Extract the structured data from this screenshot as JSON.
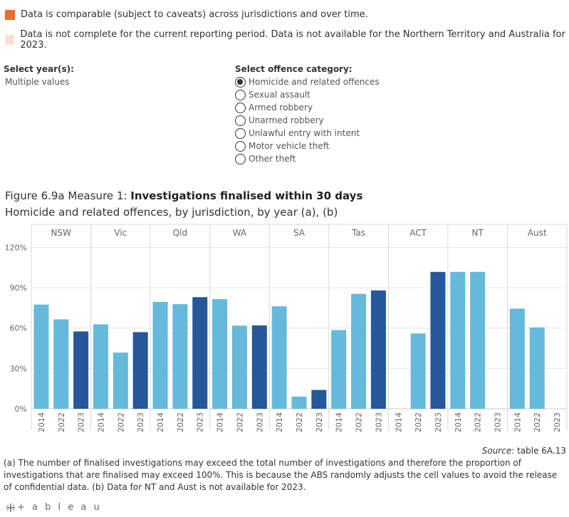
{
  "legend": [
    {
      "color": "#F26B2E",
      "label": "Data is comparable (subject to caveats) across jurisdictions and over time."
    },
    {
      "color": "#FCE0D4",
      "label": "Data is not complete for the current reporting period. Data is not available for the Northern Territory and Australia for 2023."
    }
  ],
  "filters": {
    "year": {
      "title": "Select year(s):",
      "value": "Multiple values"
    },
    "offence": {
      "title": "Select offence category:",
      "options": [
        {
          "label": "Homicide and related offences",
          "selected": true
        },
        {
          "label": "Sexual assault",
          "selected": false
        },
        {
          "label": "Armed robbery",
          "selected": false
        },
        {
          "label": "Unarmed robbery",
          "selected": false
        },
        {
          "label": "Unlawful entry with intent",
          "selected": false
        },
        {
          "label": "Motor vehicle theft",
          "selected": false
        },
        {
          "label": "Other theft",
          "selected": false
        }
      ]
    }
  },
  "figure": {
    "prefix": "Figure 6.9a Measure 1: ",
    "title_bold": "Investigations finalised within 30 days",
    "subtitle": "Homicide and related offences, by jurisdiction, by year (a), (b)"
  },
  "chart_data": {
    "type": "bar",
    "panels": [
      "NSW",
      "Vic",
      "Qld",
      "WA",
      "SA",
      "Tas",
      "ACT",
      "NT",
      "Aust"
    ],
    "years": [
      "2014",
      "2022",
      "2023"
    ],
    "colors": {
      "2014": "#65BADB",
      "2022": "#65BADB",
      "2023": "#26579B"
    },
    "values": {
      "NSW": [
        77.5,
        66.5,
        57.5
      ],
      "Vic": [
        62.8,
        41.8,
        57.0
      ],
      "Qld": [
        79.5,
        77.8,
        83.0
      ],
      "WA": [
        81.5,
        61.8,
        62.0
      ],
      "SA": [
        76.2,
        9.0,
        14.0
      ],
      "Tas": [
        58.5,
        85.5,
        88.0
      ],
      "ACT": [
        null,
        56.0,
        101.8
      ],
      "NT": [
        101.8,
        101.8,
        null
      ],
      "Aust": [
        74.5,
        60.5,
        null
      ]
    },
    "yticks": [
      0,
      30,
      60,
      90,
      120
    ],
    "ytick_labels": [
      "0%",
      "30%",
      "60%",
      "90%",
      "120%"
    ],
    "ylim": [
      0,
      125
    ],
    "grid": true
  },
  "source": {
    "label": "Source",
    "text": ": table 6A.13"
  },
  "notes": "(a) The number of finalised investigations may exceed the total number of investigations and therefore the proportion of investigations that are finalised may exceed 100%. This is because the ABS randomly adjusts the cell values to avoid the release of confidential data. (b) Data for NT and Aust is not available for 2023.",
  "branding": {
    "logo_text": "+ a b l e a u",
    "icon": "tableau-cross-icon"
  }
}
